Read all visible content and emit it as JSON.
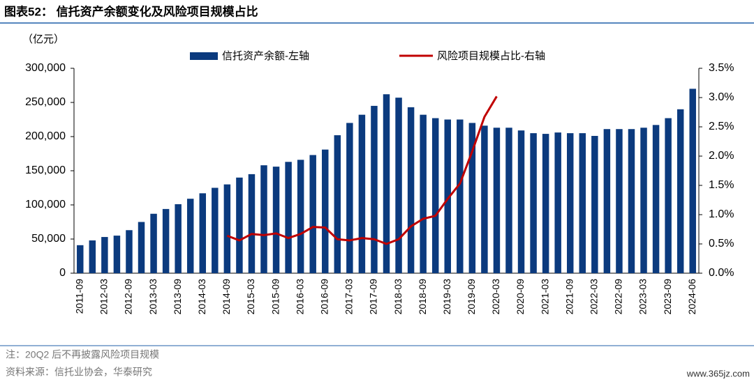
{
  "chart_data": {
    "type": "bar",
    "title": "图表52：  信托资产余额变化及风险项目规模占比",
    "y_unit": "（亿元）",
    "notes": [
      "注：20Q2 后不再披露风险项目规模",
      "资料来源：信托业协会，华泰研究"
    ],
    "watermark": "www.365jz.com",
    "categories": [
      "2011-09",
      null,
      "2012-03",
      null,
      "2012-09",
      null,
      "2013-03",
      null,
      "2013-09",
      null,
      "2014-03",
      null,
      "2014-09",
      null,
      "2015-03",
      null,
      "2015-09",
      null,
      "2016-03",
      null,
      "2016-09",
      null,
      "2017-03",
      null,
      "2017-09",
      null,
      "2018-03",
      null,
      "2018-09",
      null,
      "2019-03",
      null,
      "2019-09",
      null,
      "2020-03",
      null,
      "2020-09",
      null,
      "2021-03",
      null,
      "2021-09",
      null,
      "2022-03",
      null,
      "2022-09",
      null,
      "2023-03",
      null,
      "2023-09",
      null,
      "2024-06"
    ],
    "series": [
      {
        "name": "信托资产余额-左轴",
        "color": "#0b3a7e",
        "type": "bar",
        "values": [
          41000,
          48000,
          53000,
          55000,
          63000,
          75000,
          87000,
          94000,
          101000,
          109000,
          117000,
          125000,
          130000,
          140000,
          145000,
          158000,
          156000,
          163000,
          166000,
          173000,
          181000,
          202000,
          220000,
          232000,
          245000,
          262000,
          257000,
          243000,
          232000,
          227000,
          225000,
          225000,
          220000,
          216000,
          213000,
          213000,
          209000,
          205000,
          204000,
          206000,
          205000,
          205000,
          201000,
          211000,
          211000,
          211000,
          213000,
          217000,
          227000,
          240000,
          270000
        ]
      },
      {
        "name": "风险项目规模占比-右轴",
        "color": "#c00000",
        "type": "line",
        "axis": "y2",
        "values": [
          null,
          null,
          null,
          null,
          null,
          null,
          null,
          null,
          null,
          null,
          null,
          null,
          0.64,
          0.56,
          0.67,
          0.65,
          0.68,
          0.6,
          0.67,
          0.79,
          0.78,
          0.58,
          0.56,
          0.6,
          0.58,
          0.5,
          0.58,
          0.8,
          0.93,
          0.98,
          1.27,
          1.53,
          2.08,
          2.67,
          3.02,
          null,
          null,
          null,
          null,
          null,
          null,
          null,
          null,
          null,
          null,
          null,
          null,
          null,
          null,
          null,
          null
        ]
      }
    ],
    "ylim": [
      0,
      300000
    ],
    "yticks": [
      0,
      {
        "value": 50000,
        "label": "50,000"
      },
      {
        "value": 100000,
        "label": "100,000"
      },
      {
        "value": 150000,
        "label": "150,000"
      },
      {
        "value": 200000,
        "label": "200,000"
      },
      {
        "value": 250000,
        "label": "250,000"
      },
      {
        "value": 300000,
        "label": "300,000"
      }
    ],
    "y2lim": [
      0,
      3.5
    ],
    "y2ticks": [
      {
        "value": 0,
        "label": "0.0%"
      },
      {
        "value": 0.5,
        "label": "0.5%"
      },
      {
        "value": 1,
        "label": "1.0%"
      },
      {
        "value": 1.5,
        "label": "1.5%"
      },
      {
        "value": 2,
        "label": "2.0%"
      },
      {
        "value": 2.5,
        "label": "2.5%"
      },
      {
        "value": 3,
        "label": "3.0%"
      },
      {
        "value": 3.5,
        "label": "3.5%"
      }
    ],
    "legend": "top"
  }
}
